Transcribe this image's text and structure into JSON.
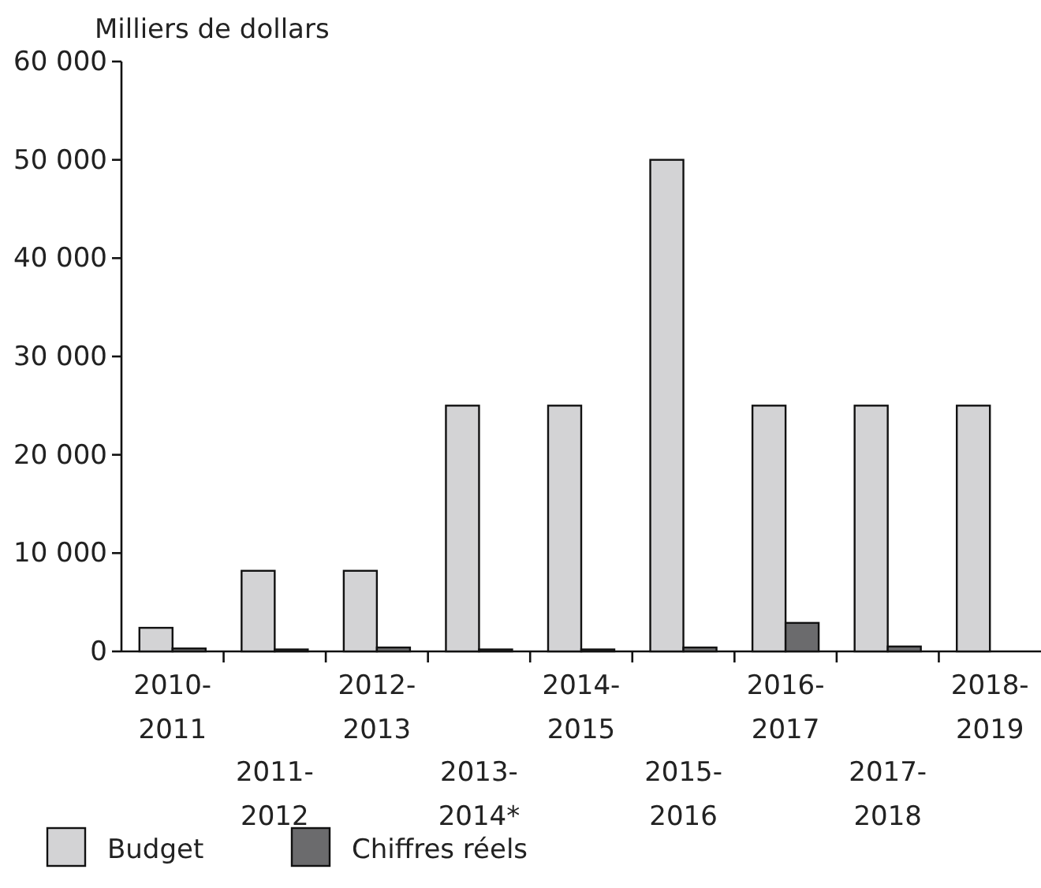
{
  "chart_data": {
    "type": "bar",
    "ylabel": "Milliers de dollars",
    "categories": [
      "2010-2011",
      "2011-2012",
      "2012-2013",
      "2013-2014*",
      "2014-2015",
      "2015-2016",
      "2016-2017",
      "2017-2018",
      "2018-2019"
    ],
    "series": [
      {
        "name": "Budget",
        "color": "#d3d3d5",
        "values": [
          2400,
          8200,
          8200,
          25000,
          25000,
          50000,
          25000,
          25000,
          25000
        ]
      },
      {
        "name": "Chiffres réels",
        "color": "#6b6b6d",
        "values": [
          300,
          200,
          400,
          200,
          200,
          400,
          2900,
          500,
          null
        ]
      }
    ],
    "ylim": [
      0,
      60000
    ],
    "yticks": [
      {
        "value": 0,
        "label": "0"
      },
      {
        "value": 10000,
        "label": "10 000"
      },
      {
        "value": 20000,
        "label": "20 000"
      },
      {
        "value": 30000,
        "label": "30 000"
      },
      {
        "value": 40000,
        "label": "40 000"
      },
      {
        "value": 50000,
        "label": "50 000"
      },
      {
        "value": 60000,
        "label": "60 000"
      }
    ],
    "grid": false,
    "legend": "bottom left"
  }
}
